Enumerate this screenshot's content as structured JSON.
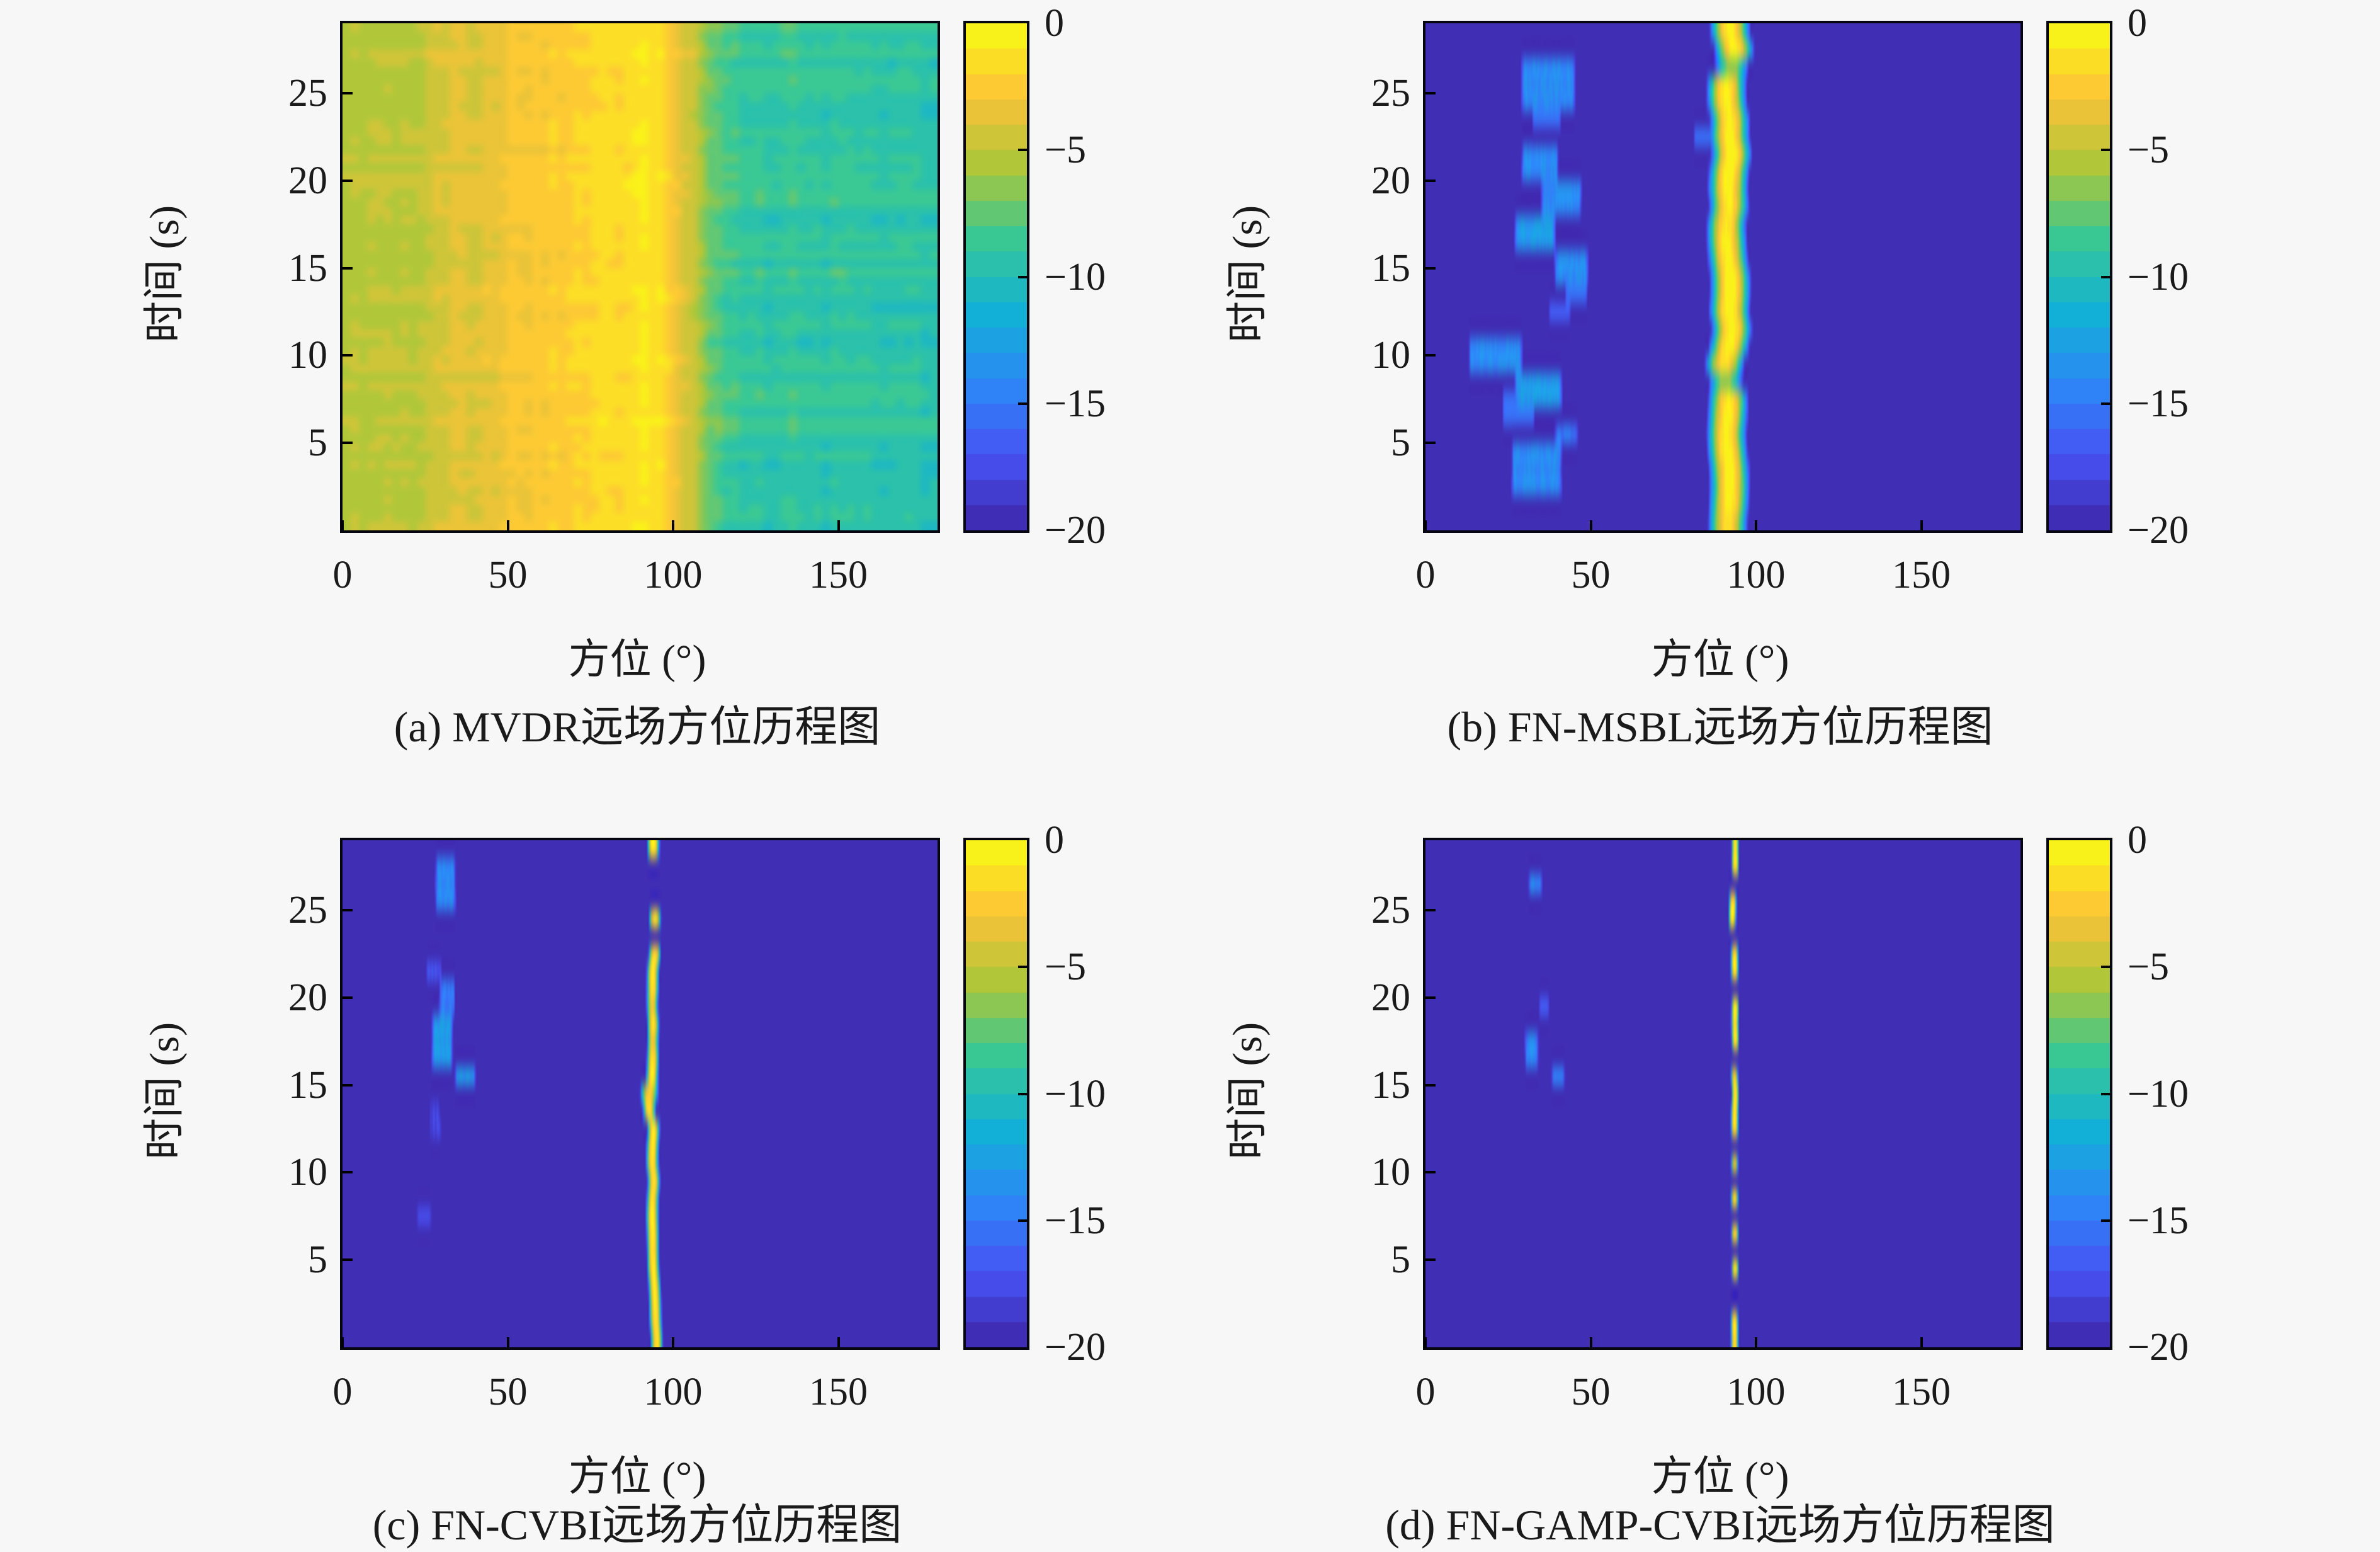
{
  "figure": {
    "background": "#f7f7f7",
    "text_color": "#1a1a1a",
    "border_color": "#05060f",
    "description": "2x2 grid of bearing-time record (BTR) heatmaps comparing four DOA algorithms"
  },
  "axis": {
    "xlabel": "方位 (°)",
    "ylabel": "时间 (s)",
    "x_range": [
      0,
      180
    ],
    "t_range": [
      0,
      29
    ],
    "xticks": [
      0,
      50,
      100,
      150
    ],
    "yticks": [
      5,
      10,
      15,
      20,
      25
    ]
  },
  "colorbar": {
    "ticks": [
      "0",
      "−5",
      "−10",
      "−15",
      "−20"
    ],
    "values": [
      0,
      -5,
      -10,
      -15,
      -20
    ],
    "clim": [
      -20,
      0
    ],
    "levels": 20,
    "colormap": "parula",
    "colormap_anchors": [
      "#3E26A8",
      "#4852F4",
      "#2D87F7",
      "#12B1D6",
      "#37C897",
      "#ABC739",
      "#FEC338",
      "#F9FB14"
    ]
  },
  "chart_data": [
    {
      "id": "a",
      "type": "heatmap",
      "algorithm": "MVDR",
      "caption": "(a) MVDR远场方位历程图",
      "kind": "smooth-field",
      "seed": 101,
      "x_range": [
        0,
        180
      ],
      "t_range": [
        0,
        29
      ],
      "clim": [
        -20,
        0
      ],
      "bearing_profile_db": [
        [
          0,
          -5.0
        ],
        [
          6,
          -5.4
        ],
        [
          12,
          -4.9
        ],
        [
          18,
          -5.4
        ],
        [
          24,
          -4.7
        ],
        [
          30,
          -4.2
        ],
        [
          36,
          -3.7
        ],
        [
          42,
          -3.6
        ],
        [
          46,
          -3.3
        ],
        [
          52,
          -2.7
        ],
        [
          58,
          -2.5
        ],
        [
          64,
          -2.3
        ],
        [
          72,
          -2.1
        ],
        [
          80,
          -1.7
        ],
        [
          86,
          -1.3
        ],
        [
          91,
          -0.8
        ],
        [
          95,
          -1.1
        ],
        [
          99,
          -2.2
        ],
        [
          103,
          -3.6
        ],
        [
          107,
          -5.2
        ],
        [
          111,
          -7.0
        ],
        [
          115,
          -8.2
        ],
        [
          120,
          -8.8
        ],
        [
          128,
          -9.1
        ],
        [
          136,
          -8.9
        ],
        [
          144,
          -9.2
        ],
        [
          152,
          -9.0
        ],
        [
          160,
          -9.3
        ],
        [
          168,
          -9.1
        ],
        [
          176,
          -9.3
        ],
        [
          180,
          -9.2
        ]
      ],
      "noise": {
        "col": 0.7,
        "row_left": 0.8,
        "row_right": 1.6,
        "cell": 0.5
      }
    },
    {
      "id": "b",
      "type": "heatmap",
      "algorithm": "FN-MSBL",
      "caption": "(b) FN-MSBL远场方位历程图",
      "kind": "track",
      "seed": 202,
      "x_range": [
        0,
        180
      ],
      "t_range": [
        0,
        29
      ],
      "clim": [
        -20,
        0
      ],
      "background_db": -20,
      "track": {
        "bearing_deg": 92.3,
        "halfwidth_deg": 6.5,
        "wiggle_deg": 1.8,
        "wiggle_smooth": 0.55,
        "peak_db": 0,
        "peak_jitter_db": 1.2,
        "dim_row_prob": 0.08,
        "dim_row_db": -6,
        "gap_prob": 0
      },
      "blobs": [
        {
          "t": [
            24.8,
            26.2
          ],
          "b": [
            30,
            44
          ],
          "db": -14
        },
        {
          "t": [
            23.9,
            24.4
          ],
          "b": [
            33,
            40
          ],
          "db": -15.5
        },
        {
          "t": [
            22.0,
            22.6
          ],
          "b": [
            82,
            87
          ],
          "db": -15.5
        },
        {
          "t": [
            20.2,
            21.6
          ],
          "b": [
            30,
            39
          ],
          "db": -14
        },
        {
          "t": [
            18.3,
            19.8
          ],
          "b": [
            36,
            46
          ],
          "db": -14
        },
        {
          "t": [
            16.0,
            18.0
          ],
          "b": [
            28,
            38
          ],
          "db": -13
        },
        {
          "t": [
            14.8,
            15.8
          ],
          "b": [
            40,
            48
          ],
          "db": -14
        },
        {
          "t": [
            13.6,
            14.3
          ],
          "b": [
            43,
            48
          ],
          "db": -15.5
        },
        {
          "t": [
            12.4,
            13.0
          ],
          "b": [
            38,
            43
          ],
          "db": -16.5
        },
        {
          "t": [
            9.9,
            10.7
          ],
          "b": [
            14,
            28
          ],
          "db": -14
        },
        {
          "t": [
            9.3,
            9.7
          ],
          "b": [
            19,
            24
          ],
          "db": -16.5
        },
        {
          "t": [
            7.4,
            8.6
          ],
          "b": [
            28,
            40
          ],
          "db": -13
        },
        {
          "t": [
            6.7,
            7.3
          ],
          "b": [
            24,
            32
          ],
          "db": -15.5
        },
        {
          "t": [
            5.0,
            5.6
          ],
          "b": [
            40,
            45
          ],
          "db": -15
        },
        {
          "t": [
            2.9,
            4.1
          ],
          "b": [
            27,
            40
          ],
          "db": -14
        },
        {
          "t": [
            2.3,
            2.7
          ],
          "b": [
            31,
            36
          ],
          "db": -16.5
        }
      ]
    },
    {
      "id": "c",
      "type": "heatmap",
      "algorithm": "FN-CVBI",
      "caption": "(c) FN-CVBI远场方位历程图",
      "kind": "track",
      "seed": 303,
      "x_range": [
        0,
        180
      ],
      "t_range": [
        0,
        29
      ],
      "clim": [
        -20,
        0
      ],
      "background_db": -20,
      "track": {
        "segments": [
          [
            0,
            3,
            94.8
          ],
          [
            3,
            5,
            94.3
          ],
          [
            5,
            13,
            94.0
          ],
          [
            13,
            15.5,
            93.1
          ],
          [
            15.5,
            22,
            93.8
          ],
          [
            22,
            29,
            94.3
          ]
        ],
        "halfwidth_deg": 2.1,
        "jitter_deg": 0.3,
        "peak_db": -0.3,
        "peak_jitter_db": 1.0,
        "orange_row_prob": 0.18,
        "orange_db": -3.2,
        "gap_prob": 0.06,
        "gaps": [
          23.4,
          25.3,
          27.4
        ],
        "knot": {
          "t": [
            14.0,
            15.0
          ],
          "halfwidth_deg": 3.2,
          "peak_db": -2.4
        }
      },
      "blobs": [
        {
          "t": [
            25.9,
            27.4
          ],
          "b": [
            29,
            33
          ],
          "db": -14
        },
        {
          "t": [
            21.2,
            21.9
          ],
          "b": [
            26,
            29
          ],
          "db": -17
        },
        {
          "t": [
            19.3,
            20.1
          ],
          "b": [
            30,
            33
          ],
          "db": -15
        },
        {
          "t": [
            16.4,
            18.3
          ],
          "b": [
            28,
            32
          ],
          "db": -13
        },
        {
          "t": [
            15.1,
            15.9
          ],
          "b": [
            35,
            39
          ],
          "db": -13
        },
        {
          "t": [
            12.9,
            13.3
          ],
          "b": [
            27,
            29
          ],
          "db": -18
        },
        {
          "t": [
            7.3,
            7.7
          ],
          "b": [
            23,
            26
          ],
          "db": -17.5
        }
      ]
    },
    {
      "id": "d",
      "type": "heatmap",
      "algorithm": "FN-GAMP-CVBI",
      "caption": "(d) FN-GAMP-CVBI远场方位历程图",
      "kind": "track",
      "seed": 404,
      "x_range": [
        0,
        180
      ],
      "t_range": [
        0,
        29
      ],
      "clim": [
        -20,
        0
      ],
      "background_db": -20,
      "track": {
        "segments": [
          [
            0,
            24,
            93.6
          ],
          [
            24,
            26.6,
            92.9
          ],
          [
            26.6,
            29,
            93.6
          ]
        ],
        "halfwidth_deg": 1.3,
        "jitter_deg": 0.15,
        "peak_db": -0.3,
        "peak_jitter_db": 0.8,
        "orange_rows": [
          [
            10.2,
            11.2,
            -3.0
          ],
          [
            15.4,
            15.9,
            -2.5
          ]
        ],
        "gaps": [
          2.4,
          5.4,
          7.1,
          9.1,
          11.9,
          16.1,
          20.5,
          23.9,
          26.7
        ],
        "gap_prob": 0.03
      },
      "blobs": [
        {
          "t": [
            26.2,
            26.9
          ],
          "b": [
            32,
            34
          ],
          "db": -14
        },
        {
          "t": [
            19.2,
            19.6
          ],
          "b": [
            35,
            36.5
          ],
          "db": -16.5
        },
        {
          "t": [
            16.1,
            18.0
          ],
          "b": [
            31,
            33
          ],
          "db": -14
        },
        {
          "t": [
            15.0,
            15.7
          ],
          "b": [
            39,
            41
          ],
          "db": -14.5
        }
      ]
    }
  ]
}
